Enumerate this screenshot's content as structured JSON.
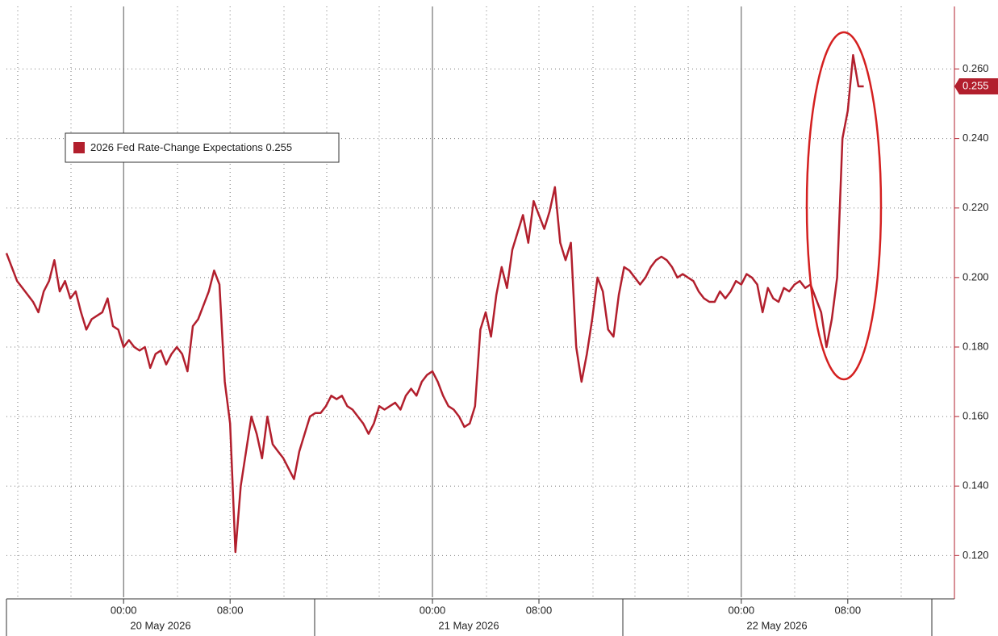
{
  "chart_data": {
    "type": "line",
    "categories": [
      null,
      null,
      null,
      null,
      null,
      null,
      null,
      null,
      null,
      null,
      null,
      null,
      null,
      null,
      null,
      null,
      null,
      null,
      null,
      null,
      null,
      null,
      "00:00",
      null,
      null,
      null,
      null,
      null,
      null,
      null,
      null,
      null,
      null,
      null,
      null,
      null,
      null,
      null,
      null,
      null,
      null,
      null,
      "08:00",
      null,
      null,
      null,
      null,
      null,
      null,
      null,
      null,
      null,
      null,
      null,
      null,
      null,
      null,
      null,
      null,
      null,
      null,
      null,
      null,
      null,
      null,
      null,
      null,
      null,
      null,
      null,
      null,
      null,
      null,
      null,
      null,
      null,
      null,
      null,
      null,
      null,
      "00:00",
      null,
      null,
      null,
      null,
      null,
      null,
      null,
      null,
      null,
      null,
      null,
      null,
      null,
      null,
      null,
      null,
      null,
      null,
      null,
      "08:00",
      null,
      null,
      null,
      null,
      null,
      null,
      null,
      null,
      null,
      null,
      null,
      null,
      null,
      null,
      null,
      null,
      null,
      null,
      null,
      null,
      null,
      null,
      null,
      null,
      null,
      null,
      null,
      null,
      null,
      null,
      null,
      null,
      null,
      null,
      null,
      null,
      null,
      "00:00",
      null,
      null,
      null,
      null,
      null,
      null,
      null,
      null,
      null,
      null,
      null,
      null,
      null,
      null,
      null,
      null,
      null,
      null,
      null,
      "08:00",
      null,
      null,
      null
    ],
    "date_labels": [
      "20 May 2026",
      "21 May 2026",
      "22 May 2026"
    ],
    "series": [
      {
        "name": "2026 Fed Rate-Change Expectations",
        "color": "#b21f2d",
        "values": [
          0.207,
          0.203,
          0.199,
          0.197,
          0.195,
          0.193,
          0.19,
          0.196,
          0.199,
          0.205,
          0.196,
          0.199,
          0.194,
          0.196,
          0.19,
          0.185,
          0.188,
          0.189,
          0.19,
          0.194,
          0.186,
          0.185,
          0.18,
          0.182,
          0.18,
          0.179,
          0.18,
          0.174,
          0.178,
          0.179,
          0.175,
          0.178,
          0.18,
          0.178,
          0.173,
          0.186,
          0.188,
          0.192,
          0.196,
          0.202,
          0.198,
          0.17,
          0.158,
          0.121,
          0.14,
          0.15,
          0.16,
          0.155,
          0.148,
          0.16,
          0.152,
          0.15,
          0.148,
          0.145,
          0.142,
          0.15,
          0.155,
          0.16,
          0.161,
          0.161,
          0.163,
          0.166,
          0.165,
          0.166,
          0.163,
          0.162,
          0.16,
          0.158,
          0.155,
          0.158,
          0.163,
          0.162,
          0.163,
          0.164,
          0.162,
          0.166,
          0.168,
          0.166,
          0.17,
          0.172,
          0.173,
          0.17,
          0.166,
          0.163,
          0.162,
          0.16,
          0.157,
          0.158,
          0.163,
          0.185,
          0.19,
          0.183,
          0.195,
          0.203,
          0.197,
          0.208,
          0.213,
          0.218,
          0.21,
          0.222,
          0.218,
          0.214,
          0.219,
          0.226,
          0.21,
          0.205,
          0.21,
          0.18,
          0.17,
          0.178,
          0.188,
          0.2,
          0.196,
          0.185,
          0.183,
          0.195,
          0.203,
          0.202,
          0.2,
          0.198,
          0.2,
          0.203,
          0.205,
          0.206,
          0.205,
          0.203,
          0.2,
          0.201,
          0.2,
          0.199,
          0.196,
          0.194,
          0.193,
          0.193,
          0.196,
          0.194,
          0.196,
          0.199,
          0.198,
          0.201,
          0.2,
          0.198,
          0.19,
          0.197,
          0.194,
          0.193,
          0.197,
          0.196,
          0.198,
          0.199,
          0.197,
          0.198,
          0.194,
          0.19,
          0.18,
          0.188,
          0.2,
          0.24,
          0.248,
          0.264,
          0.255,
          0.255
        ]
      }
    ],
    "ylim": [
      0.108,
      0.278
    ],
    "yticks": [
      {
        "value": 0.12,
        "label": "0.120"
      },
      {
        "value": 0.14,
        "label": "0.140"
      },
      {
        "value": 0.16,
        "label": "0.160"
      },
      {
        "value": 0.18,
        "label": "0.180"
      },
      {
        "value": 0.2,
        "label": "0.200"
      },
      {
        "value": 0.22,
        "label": "0.220"
      },
      {
        "value": 0.24,
        "label": "0.240"
      },
      {
        "value": 0.26,
        "label": "0.260"
      }
    ],
    "grid": true
  }
}
